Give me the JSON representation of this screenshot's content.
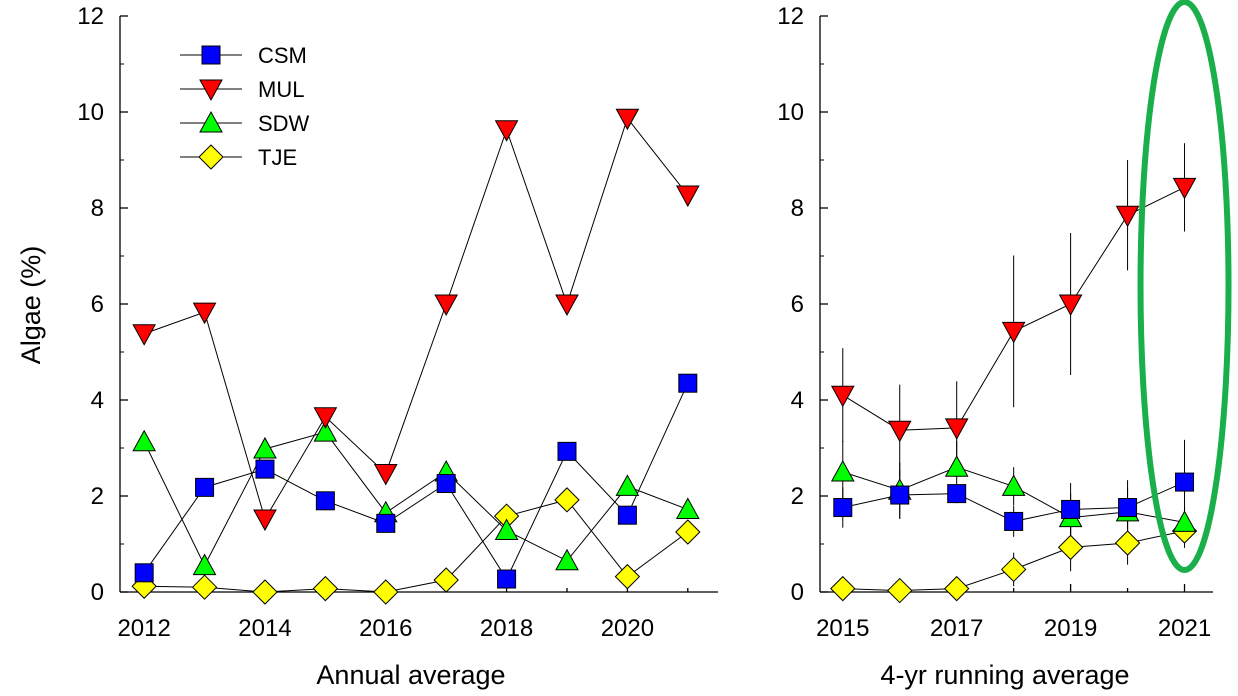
{
  "colors": {
    "CSM": "#0000ff",
    "MUL": "#ff0000",
    "SDW": "#00ff00",
    "TJE": "#ffff00",
    "highlight": "#1aaf4a"
  },
  "y_axis": {
    "label": "Algae (%)"
  },
  "chart_data": [
    {
      "type": "line",
      "panel": "left",
      "xlabel": "Annual average",
      "ylabel": "Algae (%)",
      "xlim": [
        2011.6,
        2021.5
      ],
      "ylim": [
        0,
        12
      ],
      "x_ticks": [
        2012,
        2014,
        2016,
        2018,
        2020
      ],
      "y_ticks": [
        0,
        2,
        4,
        6,
        8,
        10,
        12
      ],
      "legend_position": "top-left",
      "x": [
        2012,
        2013,
        2014,
        2015,
        2016,
        2017,
        2018,
        2019,
        2020,
        2021
      ],
      "series": [
        {
          "name": "CSM",
          "marker": "square",
          "color": "#0000ff",
          "values": [
            0.4,
            2.18,
            2.56,
            1.9,
            1.43,
            2.26,
            0.27,
            2.93,
            1.6,
            4.35
          ]
        },
        {
          "name": "MUL",
          "marker": "triangle-down",
          "color": "#ff0000",
          "values": [
            5.38,
            5.83,
            1.52,
            3.65,
            2.47,
            6.0,
            9.63,
            6.0,
            9.87,
            8.27
          ]
        },
        {
          "name": "SDW",
          "marker": "triangle-up",
          "color": "#00ff00",
          "values": [
            3.13,
            0.55,
            2.98,
            3.33,
            1.65,
            2.5,
            1.28,
            0.65,
            2.2,
            1.72
          ]
        },
        {
          "name": "TJE",
          "marker": "diamond",
          "color": "#ffff00",
          "values": [
            0.12,
            0.1,
            0.0,
            0.07,
            0.0,
            0.25,
            1.58,
            1.92,
            0.32,
            1.25
          ]
        }
      ]
    },
    {
      "type": "line",
      "panel": "right",
      "xlabel": "4-yr running average",
      "xlim": [
        2014.6,
        2021.5
      ],
      "ylim": [
        0,
        12
      ],
      "x_ticks": [
        2015,
        2017,
        2019,
        2021
      ],
      "y_ticks": [
        0,
        2,
        4,
        6,
        8,
        10,
        12
      ],
      "x": [
        2015,
        2016,
        2017,
        2018,
        2019,
        2020,
        2021
      ],
      "highlight": "2021",
      "series": [
        {
          "name": "CSM",
          "marker": "square",
          "color": "#0000ff",
          "values": [
            1.76,
            2.02,
            2.05,
            1.47,
            1.72,
            1.76,
            2.29
          ],
          "errors": [
            0.42,
            0.5,
            0.2,
            0.32,
            0.55,
            0.57,
            0.88
          ]
        },
        {
          "name": "MUL",
          "marker": "triangle-down",
          "color": "#ff0000",
          "values": [
            4.1,
            3.37,
            3.42,
            5.43,
            6.0,
            7.85,
            8.43
          ],
          "errors": [
            0.98,
            0.95,
            0.97,
            1.58,
            1.48,
            1.15,
            0.92
          ]
        },
        {
          "name": "SDW",
          "marker": "triangle-up",
          "color": "#00ff00",
          "values": [
            2.5,
            2.12,
            2.6,
            2.2,
            1.55,
            1.67,
            1.45
          ],
          "errors": [
            0.65,
            0.58,
            0.55,
            0.4,
            0.5,
            0.5,
            0.32
          ]
        },
        {
          "name": "TJE",
          "marker": "diamond",
          "color": "#ffff00",
          "values": [
            0.07,
            0.03,
            0.07,
            0.47,
            0.93,
            1.02,
            1.27
          ],
          "errors": [
            0.06,
            0.03,
            0.06,
            0.35,
            0.5,
            0.45,
            0.35
          ]
        }
      ]
    }
  ]
}
